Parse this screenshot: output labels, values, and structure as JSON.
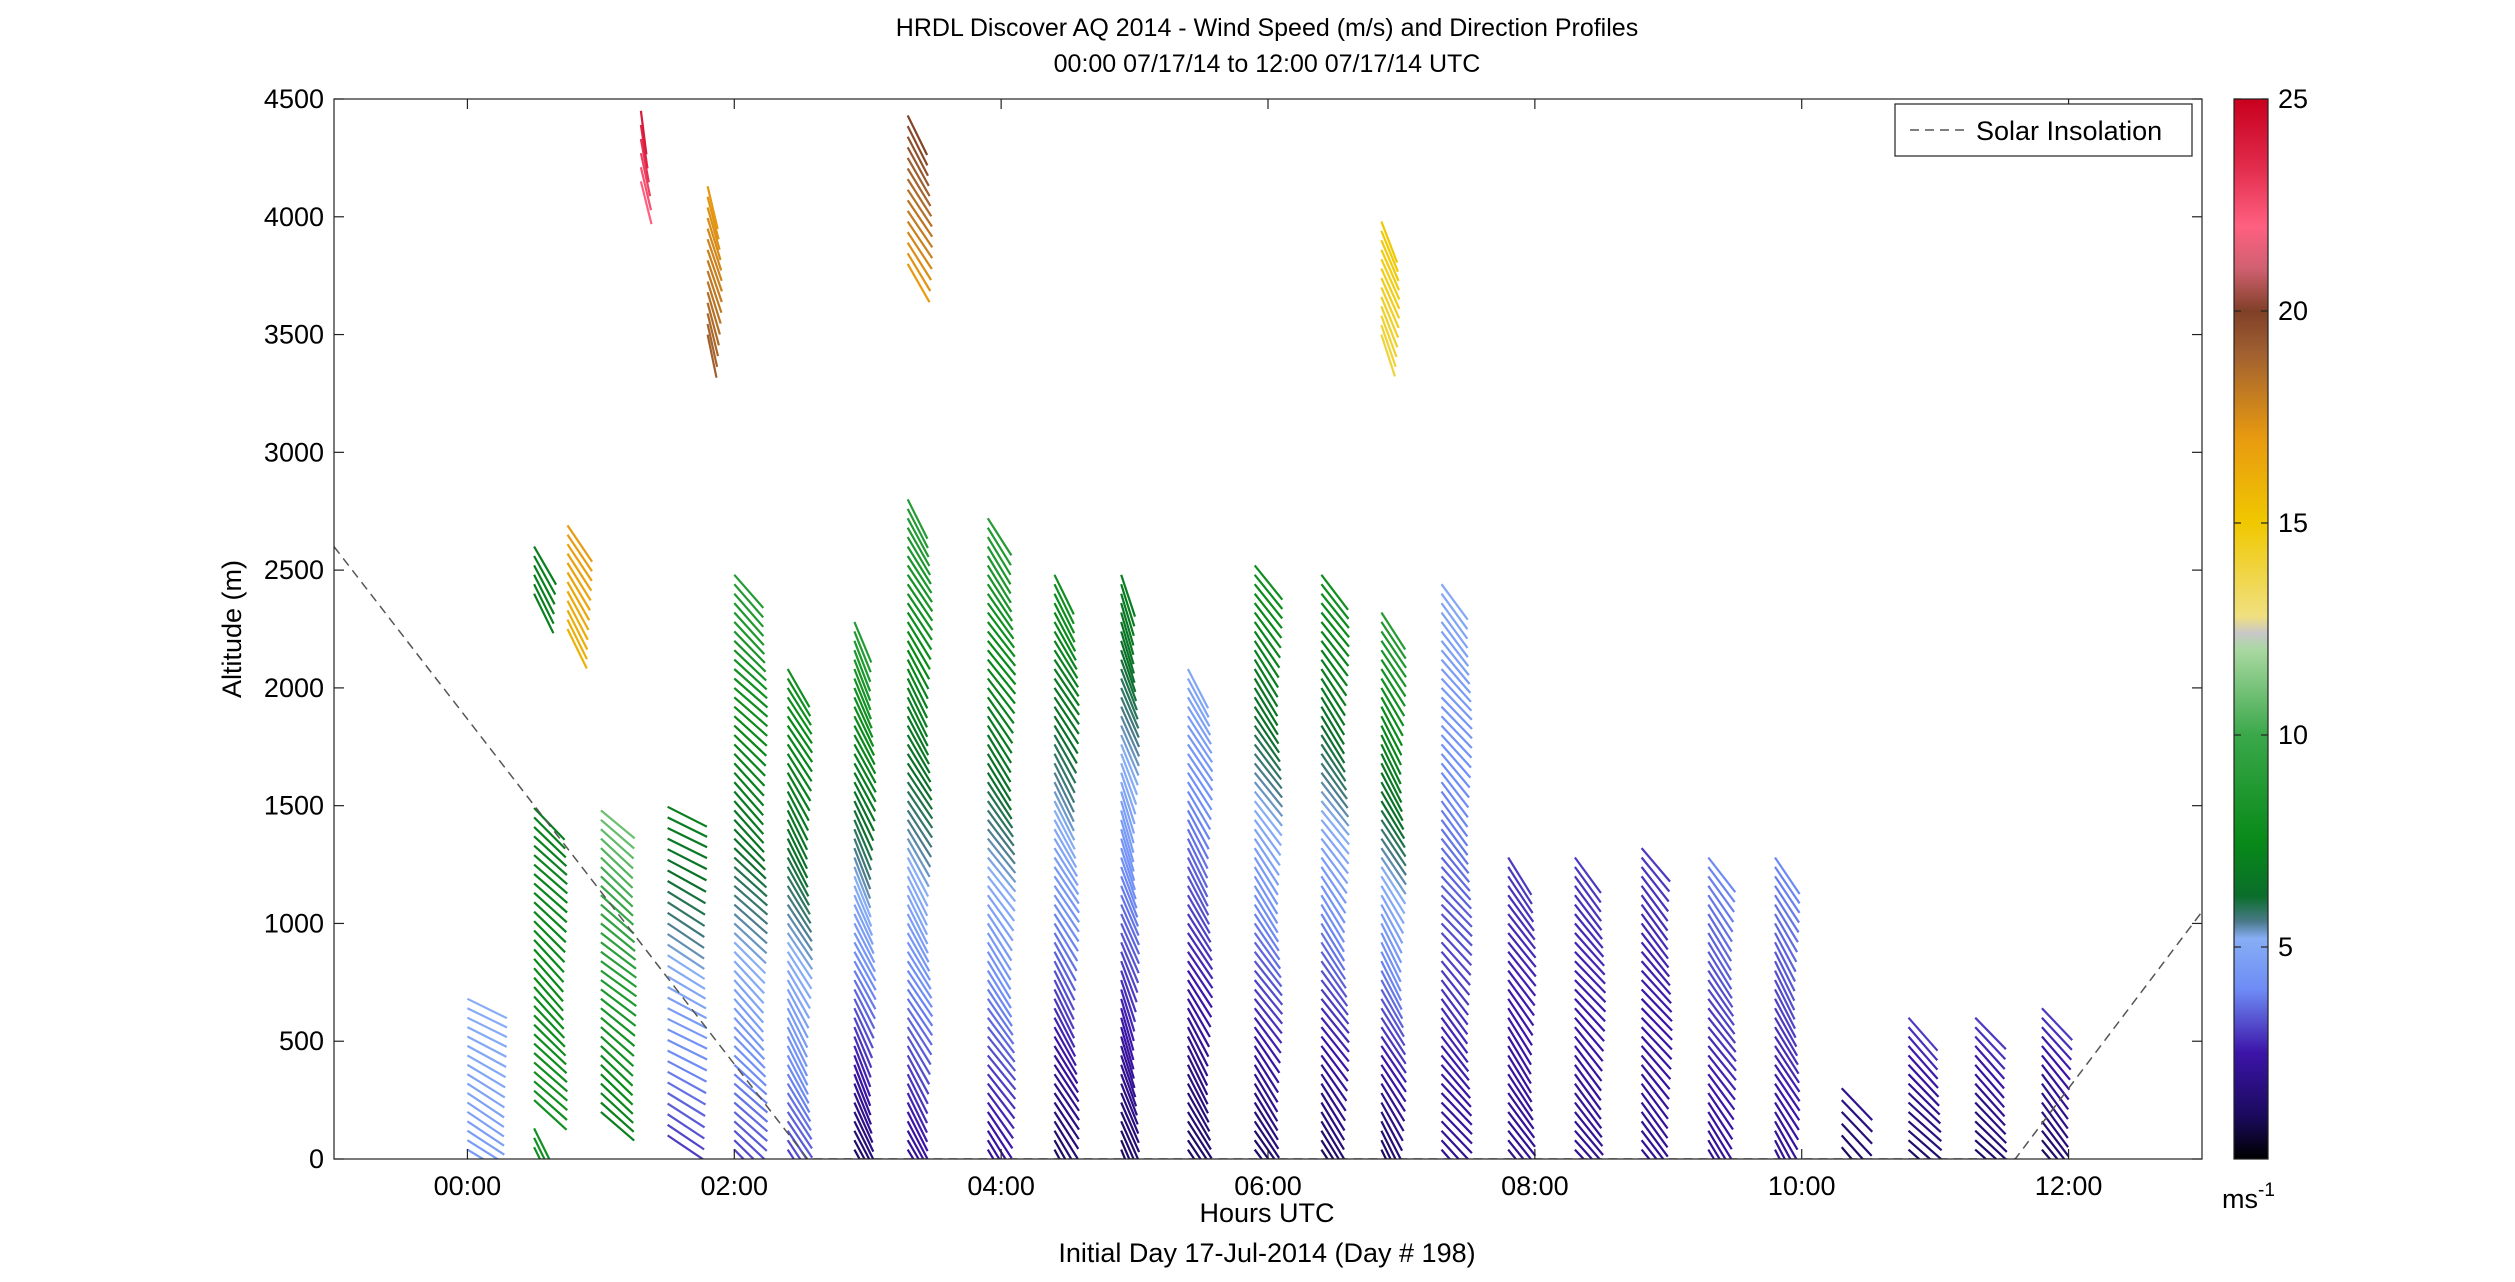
{
  "chart_data": {
    "type": "wind-barb-profile",
    "title": "HRDL Discover AQ 2014 - Wind Speed (m/s) and Direction Profiles",
    "subtitle": "00:00 07/17/14 to 12:00 07/17/14  UTC",
    "xlabel": "Hours UTC",
    "xlabel2": "Initial Day 17-Jul-2014 (Day # 198)",
    "ylabel": "Altitude (m)",
    "xlim": [
      -1.0,
      13.0
    ],
    "ylim": [
      0,
      4500
    ],
    "xticks": [
      0,
      2,
      4,
      6,
      8,
      10,
      12
    ],
    "xtick_labels": [
      "00:00",
      "02:00",
      "04:00",
      "06:00",
      "08:00",
      "10:00",
      "12:00"
    ],
    "yticks": [
      0,
      500,
      1000,
      1500,
      2000,
      2500,
      3000,
      3500,
      4000,
      4500
    ],
    "ytick_labels": [
      "0",
      "500",
      "1000",
      "1500",
      "2000",
      "2500",
      "3000",
      "3500",
      "4000",
      "4500"
    ],
    "legend": {
      "entries": [
        "Solar Insolation"
      ],
      "placement": "top-right"
    },
    "colorbar": {
      "range": [
        0,
        25
      ],
      "ticks": [
        5,
        10,
        15,
        20,
        25
      ],
      "tick_labels": [
        "5",
        "10",
        "15",
        "20",
        "25"
      ],
      "unit_label": "ms",
      "unit_exponent": "-1",
      "stops": [
        {
          "v": 0,
          "c": "#000000"
        },
        {
          "v": 1,
          "c": "#1a0a5c"
        },
        {
          "v": 2.5,
          "c": "#3c14a8"
        },
        {
          "v": 4,
          "c": "#6e8cf5"
        },
        {
          "v": 5.2,
          "c": "#87aef5"
        },
        {
          "v": 5.6,
          "c": "#4a7a8a"
        },
        {
          "v": 6.2,
          "c": "#0a6e2a"
        },
        {
          "v": 7.5,
          "c": "#088a18"
        },
        {
          "v": 10,
          "c": "#3aa84a"
        },
        {
          "v": 12,
          "c": "#a8d8a0"
        },
        {
          "v": 12.4,
          "c": "#c8c8c8"
        },
        {
          "v": 12.8,
          "c": "#f0e080"
        },
        {
          "v": 15,
          "c": "#f0c800"
        },
        {
          "v": 17,
          "c": "#e89a10"
        },
        {
          "v": 19,
          "c": "#a06030"
        },
        {
          "v": 20,
          "c": "#804028"
        },
        {
          "v": 21,
          "c": "#d06070"
        },
        {
          "v": 22,
          "c": "#ff6080"
        },
        {
          "v": 23.5,
          "c": "#e02848"
        },
        {
          "v": 25,
          "c": "#c8001e"
        }
      ]
    },
    "solar_insolation": [
      {
        "x": -1.0,
        "y": 2600
      },
      {
        "x": 2.55,
        "y": 0
      },
      {
        "x": 11.6,
        "y": 0
      },
      {
        "x": 13.0,
        "y": 1050
      }
    ],
    "profiles": [
      {
        "t": 0.0,
        "z0": 0,
        "z1": 700,
        "dz": 40,
        "bottom": 4.5,
        "top": 5.2,
        "dir": 30
      },
      {
        "t": 0.5,
        "z0": 50,
        "z1": 150,
        "dz": 40,
        "bottom": 8,
        "top": 8,
        "dir": 60
      },
      {
        "t": 0.5,
        "z0": 250,
        "z1": 1500,
        "dz": 40,
        "bottom": 8,
        "top": 7,
        "dir": 45
      },
      {
        "t": 0.5,
        "z0": 2400,
        "z1": 2600,
        "dz": 40,
        "bottom": 7,
        "top": 7,
        "dir": 60
      },
      {
        "t": 0.75,
        "z0": 2250,
        "z1": 2700,
        "dz": 40,
        "bottom": 16,
        "top": 17,
        "dir": 60
      },
      {
        "t": 1.0,
        "z0": 200,
        "z1": 1500,
        "dz": 40,
        "bottom": 7,
        "top": 11,
        "dir": 40
      },
      {
        "t": 1.3,
        "z0": 4150,
        "z1": 4450,
        "dz": 60,
        "bottom": 22,
        "top": 24,
        "dir": 80
      },
      {
        "t": 1.5,
        "z0": 100,
        "z1": 1500,
        "dz": 45,
        "bottom": 3,
        "top": 7,
        "dir": 30
      },
      {
        "t": 1.8,
        "z0": 3500,
        "z1": 4150,
        "dz": 45,
        "bottom": 19,
        "top": 17,
        "dir": 75
      },
      {
        "t": 2.0,
        "z0": 0,
        "z1": 2500,
        "dz": 40,
        "bottom": 3,
        "top": 9,
        "dir": 45
      },
      {
        "t": 2.4,
        "z0": 0,
        "z1": 2100,
        "dz": 40,
        "bottom": 3,
        "top": 8,
        "dir": 60
      },
      {
        "t": 2.9,
        "z0": 0,
        "z1": 2300,
        "dz": 40,
        "bottom": 1,
        "top": 9,
        "dir": 65
      },
      {
        "t": 3.3,
        "z0": 0,
        "z1": 2800,
        "dz": 40,
        "bottom": 2,
        "top": 9,
        "dir": 60
      },
      {
        "t": 3.3,
        "z0": 3800,
        "z1": 4450,
        "dz": 45,
        "bottom": 17,
        "top": 20,
        "dir": 60
      },
      {
        "t": 3.9,
        "z0": 0,
        "z1": 2750,
        "dz": 40,
        "bottom": 2,
        "top": 9,
        "dir": 55
      },
      {
        "t": 4.4,
        "z0": 0,
        "z1": 2500,
        "dz": 40,
        "bottom": 1,
        "top": 8,
        "dir": 60
      },
      {
        "t": 4.9,
        "z0": 0,
        "z1": 2500,
        "dz": 40,
        "bottom": 1,
        "top": 7,
        "dir": 70
      },
      {
        "t": 5.4,
        "z0": 0,
        "z1": 2100,
        "dz": 40,
        "bottom": 1,
        "top": 5,
        "dir": 60
      },
      {
        "t": 5.9,
        "z0": 0,
        "z1": 2550,
        "dz": 40,
        "bottom": 1,
        "top": 8,
        "dir": 55
      },
      {
        "t": 6.4,
        "z0": 0,
        "z1": 2500,
        "dz": 40,
        "bottom": 1,
        "top": 8,
        "dir": 55
      },
      {
        "t": 6.85,
        "z0": 0,
        "z1": 2350,
        "dz": 40,
        "bottom": 1,
        "top": 9,
        "dir": 60
      },
      {
        "t": 6.85,
        "z0": 3500,
        "z1": 3980,
        "dz": 40,
        "bottom": 14,
        "top": 15,
        "dir": 70
      },
      {
        "t": 7.3,
        "z0": 0,
        "z1": 2450,
        "dz": 40,
        "bottom": 2,
        "top": 5,
        "dir": 50
      },
      {
        "t": 7.8,
        "z0": 0,
        "z1": 1300,
        "dz": 40,
        "bottom": 2,
        "top": 3,
        "dir": 55
      },
      {
        "t": 8.3,
        "z0": 0,
        "z1": 1300,
        "dz": 40,
        "bottom": 2,
        "top": 3,
        "dir": 50
      },
      {
        "t": 8.8,
        "z0": 0,
        "z1": 1350,
        "dz": 40,
        "bottom": 2,
        "top": 3,
        "dir": 50
      },
      {
        "t": 9.3,
        "z0": 0,
        "z1": 1300,
        "dz": 40,
        "bottom": 2,
        "top": 4,
        "dir": 55
      },
      {
        "t": 9.8,
        "z0": 0,
        "z1": 1300,
        "dz": 40,
        "bottom": 2,
        "top": 4,
        "dir": 60
      },
      {
        "t": 10.3,
        "z0": 50,
        "z1": 300,
        "dz": 50,
        "bottom": 1,
        "top": 2,
        "dir": 50
      },
      {
        "t": 10.8,
        "z0": 0,
        "z1": 600,
        "dz": 40,
        "bottom": 1,
        "top": 3,
        "dir": 45
      },
      {
        "t": 11.3,
        "z0": 0,
        "z1": 600,
        "dz": 40,
        "bottom": 1,
        "top": 3,
        "dir": 45
      },
      {
        "t": 11.8,
        "z0": 0,
        "z1": 650,
        "dz": 40,
        "bottom": 1,
        "top": 3,
        "dir": 50
      }
    ]
  }
}
